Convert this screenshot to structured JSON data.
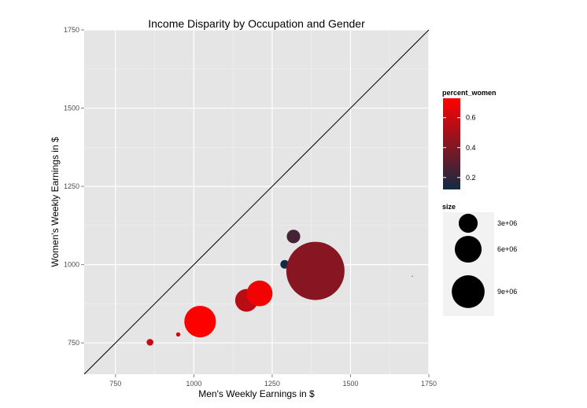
{
  "chart_data": {
    "type": "scatter",
    "title": "Income Disparity by Occupation and Gender",
    "xlabel": "Men's Weekly Earnings in $",
    "ylabel": "Women's Weekly Earnings in $",
    "xlim": [
      650,
      1750
    ],
    "ylim": [
      650,
      1750
    ],
    "x_ticks": [
      750,
      1000,
      1250,
      1500,
      1750
    ],
    "y_ticks": [
      750,
      1000,
      1250,
      1500,
      1750
    ],
    "grid": true,
    "reference_line": "y = x",
    "points": [
      {
        "x": 860,
        "y": 752,
        "size": 150000,
        "percent_women": 0.58
      },
      {
        "x": 950,
        "y": 777,
        "size": 60000,
        "percent_women": 0.6
      },
      {
        "x": 1020,
        "y": 818,
        "size": 3300000,
        "percent_women": 0.73
      },
      {
        "x": 1168,
        "y": 886,
        "size": 1700000,
        "percent_women": 0.55
      },
      {
        "x": 1210,
        "y": 908,
        "size": 2200000,
        "percent_women": 0.7
      },
      {
        "x": 1290,
        "y": 1001,
        "size": 250000,
        "percent_women": 0.12
      },
      {
        "x": 1318,
        "y": 1090,
        "size": 600000,
        "percent_women": 0.25
      },
      {
        "x": 1388,
        "y": 980,
        "size": 11200000,
        "percent_women": 0.42
      },
      {
        "x": 1697,
        "y": 963,
        "size": 1000,
        "percent_women": 0.3
      }
    ],
    "legend_placement": "right",
    "color_legend": {
      "title": "percent_women",
      "min": 0.12,
      "max": 0.73,
      "low_color": "#132b43",
      "high_color": "#ff0000",
      "breaks": [
        {
          "value": 0.2,
          "label": "0.2"
        },
        {
          "value": 0.4,
          "label": "0.4"
        },
        {
          "value": 0.6,
          "label": "0.6"
        }
      ]
    },
    "size_legend": {
      "title": "size",
      "breaks": [
        {
          "value": 3000000,
          "label": "3e+06"
        },
        {
          "value": 6000000,
          "label": "6e+06"
        },
        {
          "value": 9000000,
          "label": "9e+06"
        }
      ]
    }
  }
}
